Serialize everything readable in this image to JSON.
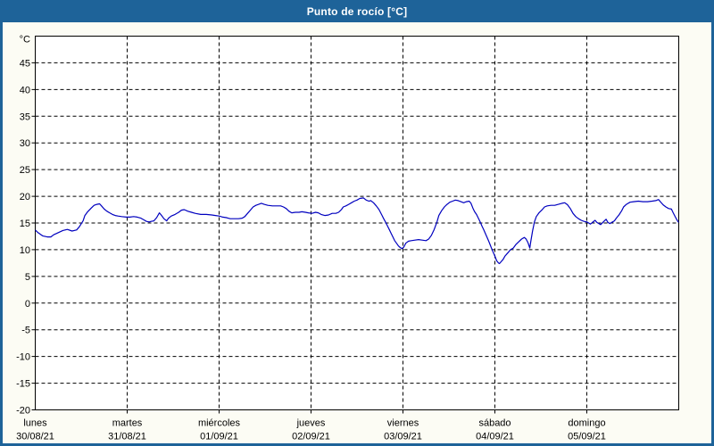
{
  "header": {
    "title": "Punto de rocío [°C]"
  },
  "colors": {
    "frame": "#1e6399",
    "header_text": "#ffffff",
    "body_bg": "#fcfcf4",
    "plot_bg": "#ffffff",
    "grid": "#000000",
    "axis_text": "#000000",
    "line": "#0000bf"
  },
  "chart_data": {
    "type": "line",
    "title": "Punto de rocío [°C]",
    "ylabel": "°C",
    "xlabel": "",
    "ylim": [
      -20,
      50
    ],
    "xlim": [
      0,
      7
    ],
    "yticks": [
      45,
      40,
      35,
      30,
      25,
      20,
      15,
      10,
      5,
      0,
      -5,
      -10,
      -15,
      -20
    ],
    "grid": "dashed",
    "legend": "none",
    "x_days": [
      {
        "name": "lunes",
        "date": "30/08/21"
      },
      {
        "name": "martes",
        "date": "31/08/21"
      },
      {
        "name": "miércoles",
        "date": "01/09/21"
      },
      {
        "name": "jueves",
        "date": "02/09/21"
      },
      {
        "name": "viernes",
        "date": "03/09/21"
      },
      {
        "name": "sábado",
        "date": "04/09/21"
      },
      {
        "name": "domingo",
        "date": "05/09/21"
      }
    ],
    "series": [
      {
        "name": "Punto de rocío",
        "color": "#0000bf",
        "points": [
          [
            0,
            13.7
          ],
          [
            0.03,
            13.2
          ],
          [
            0.08,
            12.6
          ],
          [
            0.13,
            12.4
          ],
          [
            0.17,
            12.4
          ],
          [
            0.2,
            12.8
          ],
          [
            0.25,
            13.2
          ],
          [
            0.3,
            13.6
          ],
          [
            0.35,
            13.8
          ],
          [
            0.4,
            13.5
          ],
          [
            0.45,
            13.7
          ],
          [
            0.48,
            14.3
          ],
          [
            0.52,
            15.4
          ],
          [
            0.54,
            16.4
          ],
          [
            0.57,
            17.1
          ],
          [
            0.61,
            17.8
          ],
          [
            0.64,
            18.3
          ],
          [
            0.67,
            18.5
          ],
          [
            0.7,
            18.6
          ],
          [
            0.72,
            18.2
          ],
          [
            0.75,
            17.6
          ],
          [
            0.78,
            17.2
          ],
          [
            0.81,
            16.9
          ],
          [
            0.84,
            16.6
          ],
          [
            0.87,
            16.4
          ],
          [
            0.9,
            16.3
          ],
          [
            0.94,
            16.2
          ],
          [
            0.99,
            16.1
          ],
          [
            1.03,
            16.1
          ],
          [
            1.07,
            16.2
          ],
          [
            1.11,
            16.1
          ],
          [
            1.15,
            15.9
          ],
          [
            1.18,
            15.6
          ],
          [
            1.21,
            15.3
          ],
          [
            1.24,
            15.2
          ],
          [
            1.26,
            15.3
          ],
          [
            1.29,
            15.4
          ],
          [
            1.32,
            16.0
          ],
          [
            1.35,
            16.9
          ],
          [
            1.37,
            16.5
          ],
          [
            1.4,
            15.8
          ],
          [
            1.43,
            15.4
          ],
          [
            1.45,
            15.9
          ],
          [
            1.48,
            16.3
          ],
          [
            1.52,
            16.6
          ],
          [
            1.56,
            17.0
          ],
          [
            1.59,
            17.4
          ],
          [
            1.62,
            17.5
          ],
          [
            1.66,
            17.2
          ],
          [
            1.7,
            17.0
          ],
          [
            1.74,
            16.8
          ],
          [
            1.8,
            16.6
          ],
          [
            1.86,
            16.6
          ],
          [
            1.92,
            16.5
          ],
          [
            1.96,
            16.4
          ],
          [
            2.0,
            16.3
          ],
          [
            2.04,
            16.1
          ],
          [
            2.08,
            16.0
          ],
          [
            2.12,
            15.8
          ],
          [
            2.17,
            15.8
          ],
          [
            2.21,
            15.8
          ],
          [
            2.25,
            15.9
          ],
          [
            2.28,
            16.2
          ],
          [
            2.31,
            16.8
          ],
          [
            2.34,
            17.4
          ],
          [
            2.37,
            18.0
          ],
          [
            2.4,
            18.3
          ],
          [
            2.43,
            18.5
          ],
          [
            2.46,
            18.7
          ],
          [
            2.49,
            18.5
          ],
          [
            2.53,
            18.3
          ],
          [
            2.58,
            18.2
          ],
          [
            2.62,
            18.2
          ],
          [
            2.67,
            18.2
          ],
          [
            2.7,
            18.0
          ],
          [
            2.73,
            17.7
          ],
          [
            2.76,
            17.2
          ],
          [
            2.79,
            16.9
          ],
          [
            2.83,
            17.0
          ],
          [
            2.87,
            17.0
          ],
          [
            2.9,
            17.1
          ],
          [
            2.94,
            17.0
          ],
          [
            2.97,
            16.9
          ],
          [
            3.01,
            16.8
          ],
          [
            3.05,
            17.0
          ],
          [
            3.08,
            16.9
          ],
          [
            3.11,
            16.6
          ],
          [
            3.15,
            16.4
          ],
          [
            3.19,
            16.5
          ],
          [
            3.23,
            16.8
          ],
          [
            3.27,
            16.8
          ],
          [
            3.3,
            17.0
          ],
          [
            3.33,
            17.5
          ],
          [
            3.35,
            18.0
          ],
          [
            3.38,
            18.2
          ],
          [
            3.41,
            18.5
          ],
          [
            3.44,
            18.8
          ],
          [
            3.47,
            19.1
          ],
          [
            3.5,
            19.3
          ],
          [
            3.53,
            19.6
          ],
          [
            3.57,
            19.7
          ],
          [
            3.6,
            19.3
          ],
          [
            3.63,
            19.1
          ],
          [
            3.65,
            19.2
          ],
          [
            3.68,
            18.8
          ],
          [
            3.71,
            18.2
          ],
          [
            3.74,
            17.5
          ],
          [
            3.77,
            16.5
          ],
          [
            3.79,
            15.8
          ],
          [
            3.81,
            15.2
          ],
          [
            3.83,
            14.5
          ],
          [
            3.85,
            13.8
          ],
          [
            3.87,
            13.1
          ],
          [
            3.89,
            12.4
          ],
          [
            3.91,
            11.7
          ],
          [
            3.93,
            11.2
          ],
          [
            3.95,
            10.7
          ],
          [
            3.97,
            10.4
          ],
          [
            3.99,
            10.2
          ],
          [
            4.01,
            10.5
          ],
          [
            4.03,
            11.2
          ],
          [
            4.06,
            11.6
          ],
          [
            4.09,
            11.7
          ],
          [
            4.13,
            11.8
          ],
          [
            4.17,
            11.9
          ],
          [
            4.21,
            11.8
          ],
          [
            4.25,
            11.7
          ],
          [
            4.28,
            12.0
          ],
          [
            4.31,
            12.7
          ],
          [
            4.34,
            13.8
          ],
          [
            4.37,
            15.2
          ],
          [
            4.39,
            16.4
          ],
          [
            4.42,
            17.3
          ],
          [
            4.45,
            18.0
          ],
          [
            4.48,
            18.5
          ],
          [
            4.51,
            18.9
          ],
          [
            4.54,
            19.1
          ],
          [
            4.57,
            19.3
          ],
          [
            4.6,
            19.2
          ],
          [
            4.63,
            19.0
          ],
          [
            4.66,
            18.8
          ],
          [
            4.69,
            19.0
          ],
          [
            4.72,
            19.1
          ],
          [
            4.74,
            18.7
          ],
          [
            4.76,
            17.8
          ],
          [
            4.78,
            17.1
          ],
          [
            4.8,
            16.6
          ],
          [
            4.82,
            15.9
          ],
          [
            4.84,
            15.2
          ],
          [
            4.86,
            14.4
          ],
          [
            4.88,
            13.7
          ],
          [
            4.9,
            12.9
          ],
          [
            4.92,
            12.1
          ],
          [
            4.94,
            11.3
          ],
          [
            4.96,
            10.4
          ],
          [
            4.98,
            9.6
          ],
          [
            5.0,
            8.8
          ],
          [
            5.02,
            7.9
          ],
          [
            5.04,
            7.5
          ],
          [
            5.05,
            7.4
          ],
          [
            5.07,
            7.8
          ],
          [
            5.09,
            8.2
          ],
          [
            5.11,
            8.8
          ],
          [
            5.13,
            9.2
          ],
          [
            5.15,
            9.6
          ],
          [
            5.17,
            10.0
          ],
          [
            5.2,
            10.3
          ],
          [
            5.23,
            11.0
          ],
          [
            5.26,
            11.5
          ],
          [
            5.29,
            12.0
          ],
          [
            5.32,
            12.3
          ],
          [
            5.34,
            12.0
          ],
          [
            5.36,
            11.3
          ],
          [
            5.38,
            10.3
          ],
          [
            5.39,
            11.5
          ],
          [
            5.41,
            13.5
          ],
          [
            5.43,
            15.2
          ],
          [
            5.45,
            16.2
          ],
          [
            5.48,
            16.9
          ],
          [
            5.51,
            17.4
          ],
          [
            5.54,
            18.0
          ],
          [
            5.57,
            18.2
          ],
          [
            5.61,
            18.3
          ],
          [
            5.65,
            18.3
          ],
          [
            5.69,
            18.5
          ],
          [
            5.73,
            18.7
          ],
          [
            5.76,
            18.8
          ],
          [
            5.79,
            18.4
          ],
          [
            5.82,
            17.7
          ],
          [
            5.85,
            16.8
          ],
          [
            5.88,
            16.2
          ],
          [
            5.91,
            15.8
          ],
          [
            5.94,
            15.5
          ],
          [
            5.97,
            15.3
          ],
          [
            6.0,
            15.2
          ],
          [
            6.02,
            15.0
          ],
          [
            6.04,
            14.8
          ],
          [
            6.06,
            15.1
          ],
          [
            6.09,
            15.5
          ],
          [
            6.11,
            15.1
          ],
          [
            6.13,
            14.9
          ],
          [
            6.15,
            14.7
          ],
          [
            6.18,
            15.2
          ],
          [
            6.21,
            15.7
          ],
          [
            6.23,
            15.1
          ],
          [
            6.25,
            14.9
          ],
          [
            6.28,
            15.2
          ],
          [
            6.3,
            15.4
          ],
          [
            6.32,
            15.9
          ],
          [
            6.35,
            16.5
          ],
          [
            6.38,
            17.3
          ],
          [
            6.4,
            18.0
          ],
          [
            6.43,
            18.5
          ],
          [
            6.47,
            18.9
          ],
          [
            6.51,
            19.0
          ],
          [
            6.56,
            19.1
          ],
          [
            6.61,
            19.0
          ],
          [
            6.66,
            19.0
          ],
          [
            6.71,
            19.1
          ],
          [
            6.75,
            19.2
          ],
          [
            6.78,
            19.4
          ],
          [
            6.8,
            19.0
          ],
          [
            6.83,
            18.4
          ],
          [
            6.86,
            18.0
          ],
          [
            6.89,
            17.7
          ],
          [
            6.92,
            17.6
          ],
          [
            6.94,
            16.9
          ],
          [
            6.97,
            15.9
          ],
          [
            6.99,
            15.3
          ],
          [
            7.0,
            15.1
          ]
        ]
      }
    ]
  }
}
